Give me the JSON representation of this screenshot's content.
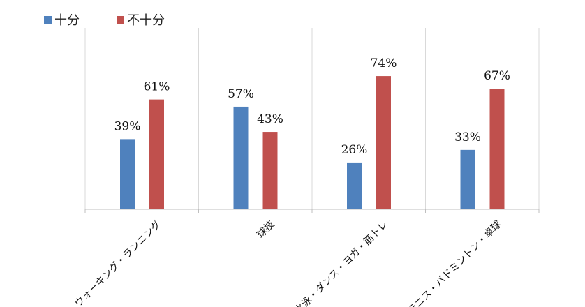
{
  "chart_data": {
    "type": "bar",
    "categories": [
      "ウォーキング・ランニング",
      "球技",
      "水泳・ダンス・ヨガ・筋トレ",
      "テニス・バドミントン・卓球"
    ],
    "series": [
      {
        "name": "十分",
        "values": [
          39,
          57,
          26,
          33
        ],
        "color": "#4F81BD"
      },
      {
        "name": "不十分",
        "values": [
          61,
          43,
          74,
          67
        ],
        "color": "#C0504D"
      }
    ],
    "data_labels": [
      [
        "39%",
        "57%",
        "26%",
        "33%"
      ],
      [
        "61%",
        "43%",
        "74%",
        "67%"
      ]
    ],
    "ylim": [
      0,
      100
    ],
    "grid": true,
    "legend_position": "top-left",
    "title": "",
    "xlabel": "",
    "ylabel": ""
  }
}
